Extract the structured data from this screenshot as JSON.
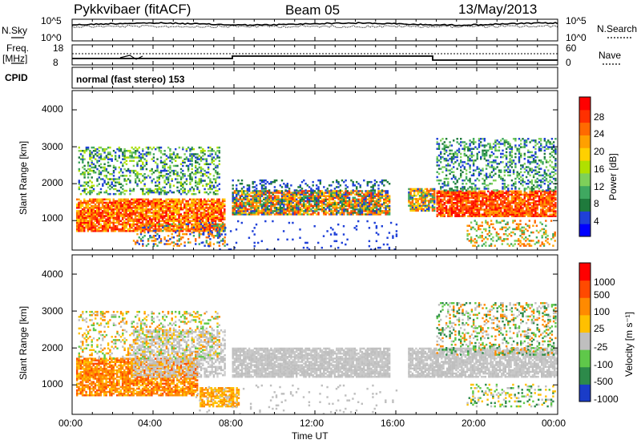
{
  "header": {
    "site": "Pykkvibaer (fitACF)",
    "beam": "Beam 05",
    "date": "13/May/2013"
  },
  "top_panels": {
    "nsky_label": "N.Sky",
    "nsky_ticks": [
      "10^5",
      "10^0"
    ],
    "nsearch_label": "N.Search",
    "nsearch_ticks": [
      "10^5",
      "10^0"
    ],
    "freq_label": "Freq.",
    "freq_unit": "[MHz]",
    "freq_ticks": [
      "18",
      "8"
    ],
    "nave_label": "Nave",
    "nave_ticks": [
      "60",
      "0"
    ],
    "cpid_label": "CPID",
    "cpid_value": "normal (fast stereo) 153"
  },
  "chart_data": [
    {
      "type": "heatmap",
      "title": "",
      "ylabel": "Slant Range [km]",
      "xlabel": "",
      "ylim": [
        180,
        4500
      ],
      "yticks": [
        "4000",
        "3000",
        "2000",
        "1000"
      ],
      "colorbar_label": "Power [dB]",
      "colorbar_ticks": [
        "28",
        "24",
        "20",
        "16",
        "12",
        "8",
        "4"
      ],
      "colorbar_colors": [
        "#0000ff",
        "#1f40d8",
        "#1f7a3c",
        "#3fa860",
        "#7ed05a",
        "#b0e000",
        "#ffd000",
        "#ffa000",
        "#ff6a00",
        "#ff3000",
        "#ff0000"
      ]
    },
    {
      "type": "heatmap",
      "title": "",
      "ylabel": "Slant Range [km]",
      "xlabel": "Time UT",
      "ylim": [
        180,
        4500
      ],
      "yticks": [
        "4000",
        "3000",
        "2000",
        "1000"
      ],
      "xticks": [
        "00:00",
        "04:00",
        "08:00",
        "12:00",
        "16:00",
        "20:00",
        "00:00"
      ],
      "colorbar_label": "Velocity [m s⁻¹]",
      "colorbar_ticks": [
        "1000",
        "500",
        "100",
        "25",
        "-25",
        "-100",
        "-500",
        "-1000"
      ],
      "colorbar_colors": [
        "#1a3cc8",
        "#2d8a4a",
        "#5fc84a",
        "#bfbfbf",
        "#ffc000",
        "#ff8a00",
        "#ff4a00",
        "#ff0000"
      ]
    }
  ]
}
